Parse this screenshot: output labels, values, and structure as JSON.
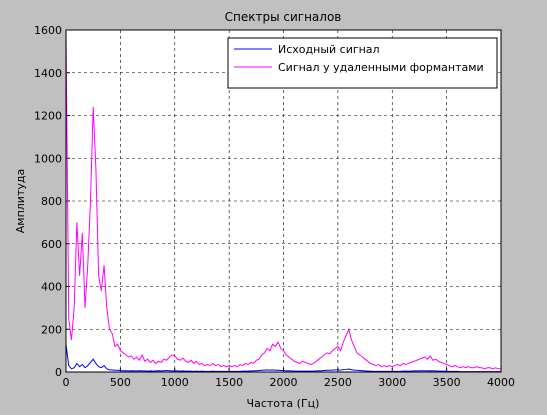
{
  "chart_data": {
    "type": "line",
    "title": "Спектры сигналов",
    "x_label": "Частота (Гц)",
    "y_label": "Амплитуда",
    "x": [
      0,
      25,
      50,
      75,
      100,
      125,
      150,
      175,
      200,
      225,
      250,
      275,
      300,
      325,
      350,
      375,
      400,
      425,
      450,
      475,
      500,
      525,
      550,
      575,
      600,
      625,
      650,
      675,
      700,
      725,
      750,
      775,
      800,
      825,
      850,
      875,
      900,
      925,
      950,
      975,
      1000,
      1025,
      1050,
      1075,
      1100,
      1125,
      1150,
      1175,
      1200,
      1225,
      1250,
      1275,
      1300,
      1325,
      1350,
      1375,
      1400,
      1425,
      1450,
      1475,
      1500,
      1525,
      1550,
      1575,
      1600,
      1625,
      1650,
      1675,
      1700,
      1725,
      1750,
      1775,
      1800,
      1825,
      1850,
      1875,
      1900,
      1925,
      1950,
      1975,
      2000,
      2025,
      2050,
      2075,
      2100,
      2125,
      2150,
      2175,
      2200,
      2225,
      2250,
      2275,
      2300,
      2325,
      2350,
      2375,
      2400,
      2425,
      2450,
      2475,
      2500,
      2525,
      2550,
      2575,
      2600,
      2625,
      2650,
      2675,
      2700,
      2725,
      2750,
      2775,
      2800,
      2825,
      2850,
      2875,
      2900,
      2925,
      2950,
      2975,
      3000,
      3025,
      3050,
      3075,
      3100,
      3125,
      3150,
      3175,
      3200,
      3225,
      3250,
      3275,
      3300,
      3325,
      3350,
      3375,
      3400,
      3425,
      3450,
      3475,
      3500,
      3525,
      3550,
      3575,
      3600,
      3625,
      3650,
      3675,
      3700,
      3725,
      3750,
      3775,
      3800,
      3825,
      3850,
      3875,
      3900,
      3925,
      3950,
      3975,
      4000
    ],
    "series": [
      {
        "name": "Сигнал у удаленными формантами",
        "color": "#ff00ff",
        "values": [
          1600,
          250,
          150,
          300,
          700,
          450,
          650,
          300,
          500,
          800,
          1240,
          950,
          450,
          380,
          500,
          300,
          200,
          180,
          120,
          130,
          100,
          90,
          80,
          70,
          75,
          60,
          70,
          55,
          80,
          50,
          60,
          45,
          55,
          40,
          50,
          45,
          60,
          55,
          70,
          80,
          75,
          60,
          55,
          65,
          50,
          45,
          55,
          40,
          50,
          35,
          40,
          30,
          35,
          30,
          40,
          30,
          35,
          25,
          30,
          25,
          30,
          25,
          30,
          25,
          35,
          30,
          40,
          35,
          45,
          40,
          55,
          60,
          80,
          90,
          110,
          100,
          130,
          120,
          140,
          110,
          100,
          80,
          70,
          60,
          50,
          45,
          40,
          50,
          45,
          40,
          35,
          40,
          50,
          60,
          70,
          80,
          90,
          85,
          100,
          110,
          120,
          100,
          140,
          170,
          200,
          150,
          120,
          90,
          80,
          70,
          60,
          50,
          40,
          35,
          30,
          35,
          25,
          30,
          25,
          30,
          25,
          30,
          35,
          30,
          40,
          35,
          40,
          45,
          50,
          55,
          60,
          65,
          70,
          60,
          75,
          55,
          60,
          50,
          45,
          40,
          35,
          30,
          25,
          30,
          25,
          20,
          25,
          20,
          25,
          20,
          20,
          25,
          20,
          20,
          15,
          20,
          20,
          15,
          20,
          15,
          15
        ]
      },
      {
        "name": "Исходный сигнал",
        "color": "#0000ff",
        "values": [
          130,
          30,
          15,
          20,
          40,
          25,
          35,
          20,
          30,
          45,
          60,
          40,
          25,
          20,
          30,
          15,
          10,
          10,
          8,
          8,
          7,
          6,
          6,
          5,
          6,
          5,
          5,
          6,
          5,
          5,
          4,
          5,
          4,
          5,
          6,
          5,
          6,
          7,
          6,
          5,
          5,
          5,
          4,
          5,
          4,
          4,
          4,
          3,
          4,
          3,
          4,
          3,
          3,
          3,
          4,
          3,
          3,
          3,
          3,
          3,
          3,
          3,
          3,
          3,
          3,
          4,
          4,
          4,
          5,
          5,
          6,
          7,
          8,
          9,
          10,
          9,
          10,
          8,
          9,
          7,
          7,
          6,
          5,
          5,
          4,
          4,
          4,
          4,
          4,
          4,
          4,
          4,
          5,
          5,
          6,
          7,
          8,
          8,
          9,
          10,
          10,
          9,
          11,
          12,
          14,
          11,
          9,
          8,
          7,
          6,
          5,
          4,
          4,
          3,
          3,
          3,
          3,
          3,
          3,
          3,
          3,
          3,
          3,
          3,
          4,
          4,
          4,
          4,
          5,
          5,
          5,
          6,
          6,
          5,
          6,
          5,
          5,
          4,
          4,
          4,
          3,
          3,
          3,
          3,
          3,
          2,
          2,
          2,
          2,
          2,
          2,
          2,
          2,
          2,
          2,
          2,
          2,
          2,
          2,
          2,
          2
        ]
      }
    ],
    "xlim": [
      0,
      4000
    ],
    "xticks": [
      0,
      500,
      1000,
      1500,
      2000,
      2500,
      3000,
      3500,
      4000
    ],
    "ylim": [
      0,
      1600
    ],
    "yticks": [
      0,
      200,
      400,
      600,
      800,
      1000,
      1200,
      1400,
      1600
    ],
    "grid": true,
    "legend": "northeast"
  }
}
